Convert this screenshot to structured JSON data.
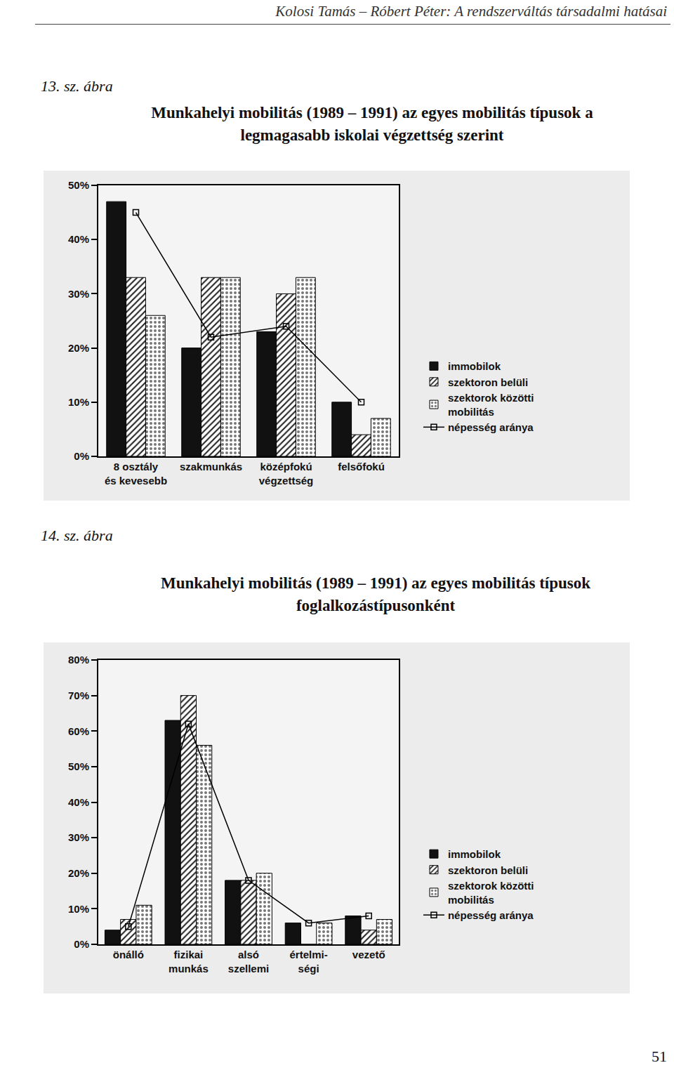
{
  "header": "Kolosi Tamás – Róbert Péter: A rendszerváltás társadalmi hatásai",
  "page_number": "51",
  "chart_data": [
    {
      "label": "13. sz. ábra",
      "title": "Munkahelyi mobilitás (1989 – 1991) az egyes mobilitás típusok a\nlegmagasabb iskolai végzettség szerint",
      "type": "bar",
      "categories": [
        "8 osztály\nés kevesebb",
        "szakmunkás",
        "középfokú\nvégzettség",
        "felsőfokú"
      ],
      "series": [
        {
          "name": "immobilok",
          "color": "#111111",
          "marker": "solid",
          "values": [
            47,
            20,
            23,
            10
          ]
        },
        {
          "name": "szektoron belüli",
          "color": "#222222",
          "marker": "hatched",
          "values": [
            33,
            33,
            30,
            4
          ]
        },
        {
          "name": "szektorok közötti\nmobilitás",
          "color": "#777777",
          "marker": "dotted",
          "values": [
            26,
            33,
            33,
            7
          ]
        },
        {
          "name": "népesség aránya",
          "color": "#000000",
          "type": "line",
          "marker": "square",
          "values": [
            45,
            22,
            24,
            10
          ]
        }
      ],
      "ylim": [
        0,
        50
      ],
      "yticks": [
        {
          "value": 0,
          "label": "0%"
        },
        {
          "value": 10,
          "label": "10%"
        },
        {
          "value": 20,
          "label": "20%"
        },
        {
          "value": 30,
          "label": "30%"
        },
        {
          "value": 40,
          "label": "40%"
        },
        {
          "value": 50,
          "label": "50%"
        }
      ],
      "grid": false,
      "legend": "right"
    },
    {
      "label": "14. sz. ábra",
      "title": "Munkahelyi mobilitás (1989 – 1991) az egyes mobilitás típusok\nfoglalkozástípusonként",
      "type": "bar",
      "categories": [
        "önálló",
        "fizikai\nmunkás",
        "alsó\nszellemi",
        "értelmi-\nségi",
        "vezető"
      ],
      "series": [
        {
          "name": "immobilok",
          "color": "#111111",
          "marker": "solid",
          "values": [
            4,
            63,
            18,
            6,
            8
          ]
        },
        {
          "name": "szektoron belüli",
          "color": "#222222",
          "marker": "hatched",
          "values": [
            7,
            70,
            18,
            0,
            4
          ]
        },
        {
          "name": "szektorok közötti\nmobilitás",
          "color": "#777777",
          "marker": "dotted",
          "values": [
            11,
            56,
            20,
            6,
            7
          ]
        },
        {
          "name": "népesség aránya",
          "color": "#000000",
          "type": "line",
          "marker": "square",
          "values": [
            5,
            62,
            18,
            6,
            8
          ]
        }
      ],
      "ylim": [
        0,
        80
      ],
      "yticks": [
        {
          "value": 0,
          "label": "0%"
        },
        {
          "value": 10,
          "label": "10%"
        },
        {
          "value": 20,
          "label": "20%"
        },
        {
          "value": 30,
          "label": "30%"
        },
        {
          "value": 40,
          "label": "40%"
        },
        {
          "value": 50,
          "label": "50%"
        },
        {
          "value": 60,
          "label": "60%"
        },
        {
          "value": 70,
          "label": "70%"
        },
        {
          "value": 80,
          "label": "80%"
        }
      ],
      "grid": false,
      "legend": "right"
    }
  ]
}
